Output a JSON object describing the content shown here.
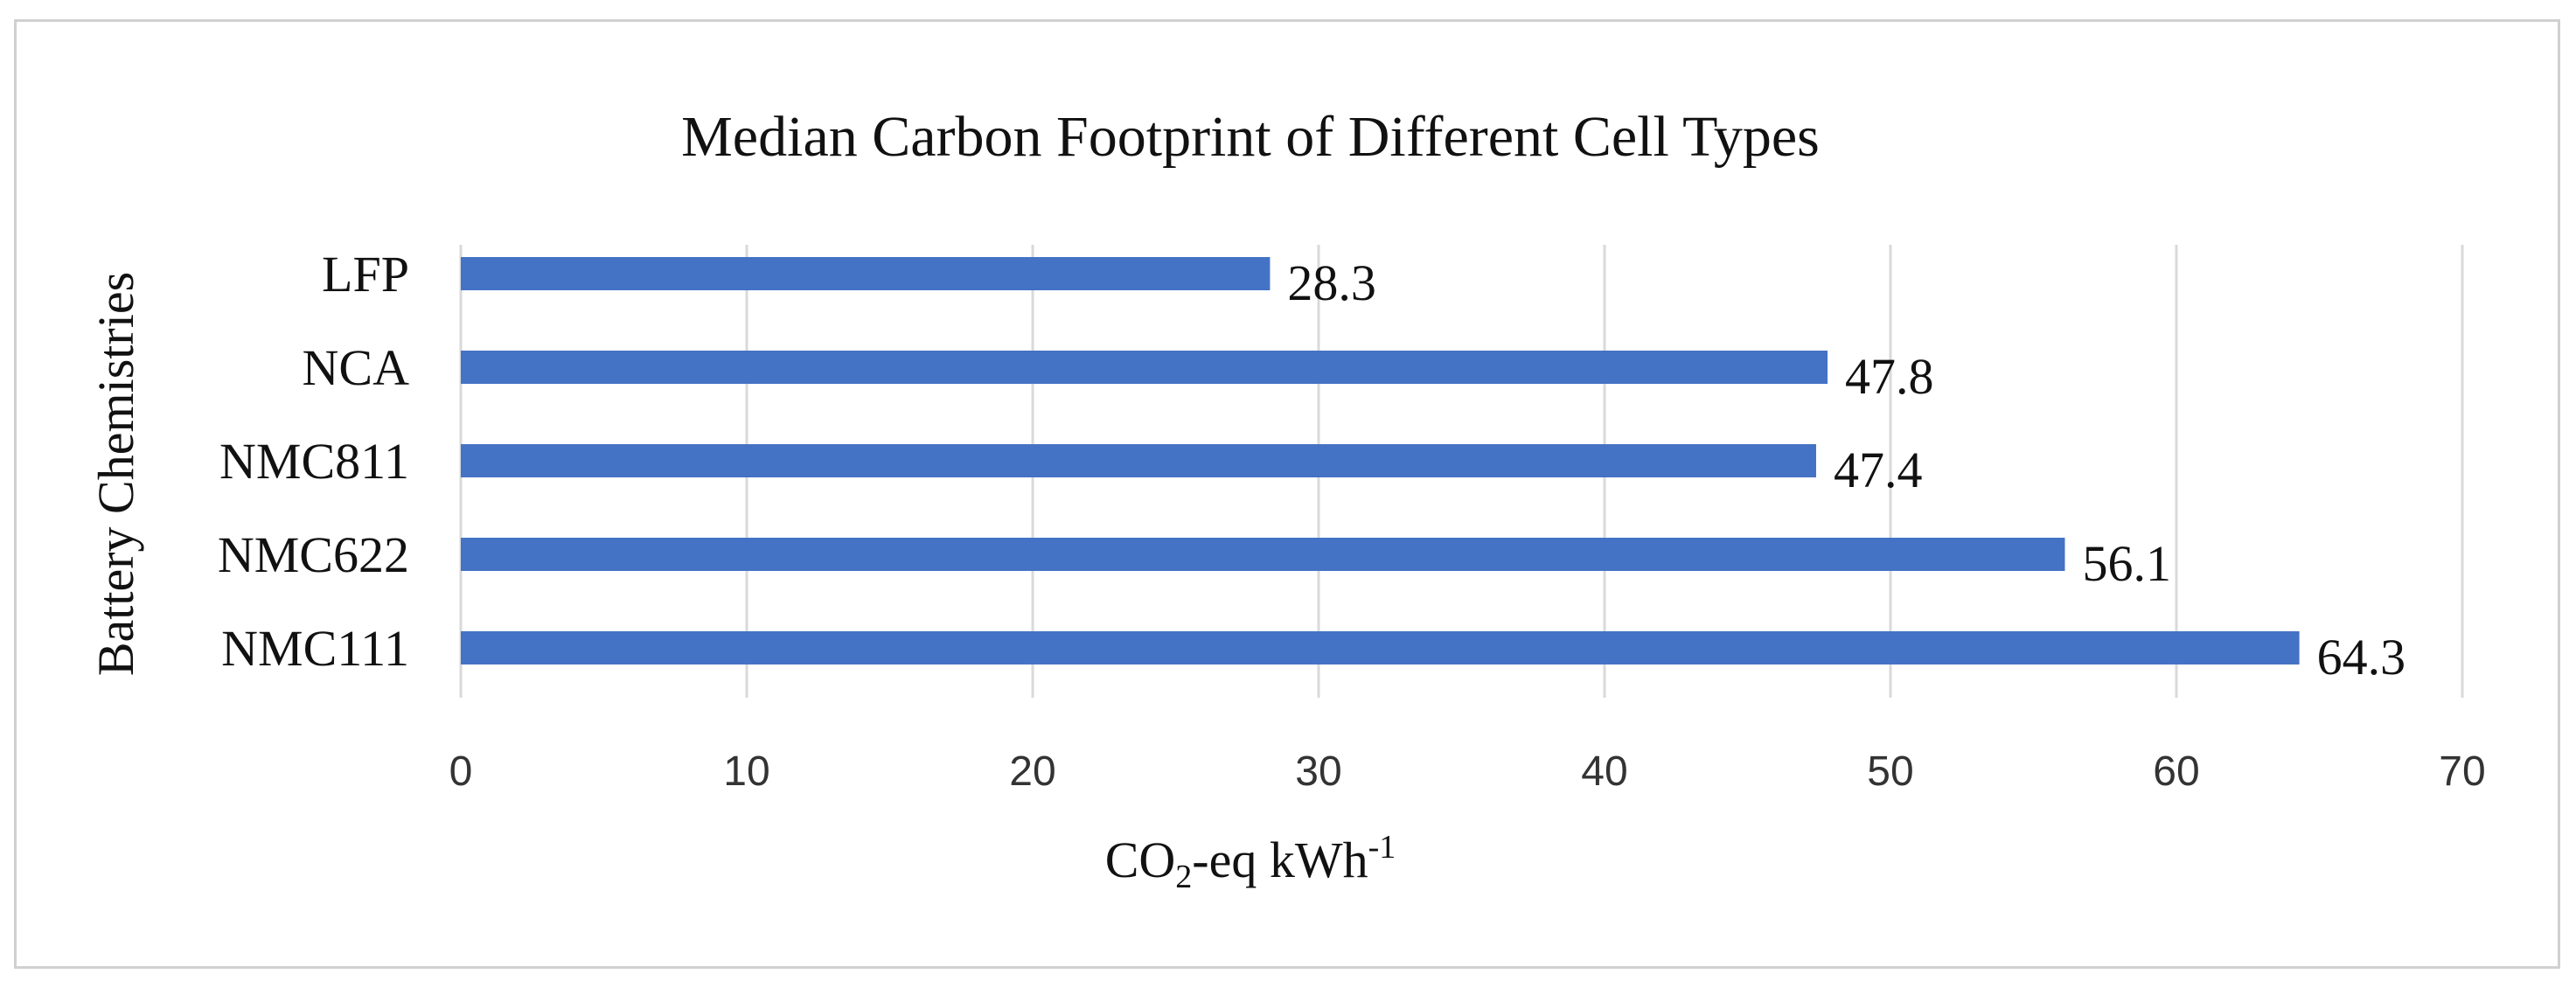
{
  "chart_data": {
    "type": "bar",
    "orientation": "horizontal",
    "title": "Median Carbon Footprint of Different Cell Types",
    "ylabel": "Battery Chemistries",
    "xlabel": {
      "base": "CO",
      "sub": "2",
      "mid": "-eq kWh",
      "sup": "-1"
    },
    "categories": [
      "LFP",
      "NCA",
      "NMC811",
      "NMC622",
      "NMC111"
    ],
    "values": [
      28.3,
      47.8,
      47.4,
      56.1,
      64.3
    ],
    "value_labels": [
      "28.3",
      "47.8",
      "47.4",
      "56.1",
      "64.3"
    ],
    "xlim": [
      0,
      70
    ],
    "x_ticks": [
      "0",
      "10",
      "20",
      "30",
      "40",
      "50",
      "60",
      "70"
    ],
    "grid": "vertical",
    "legend": "none",
    "bar_color": "#4472c4",
    "grid_color": "#d9d9d9"
  }
}
